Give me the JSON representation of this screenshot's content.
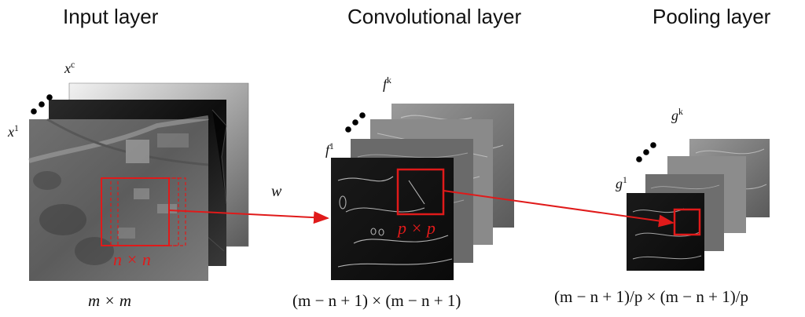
{
  "titles": {
    "input": "Input layer",
    "conv": "Convolutional layer",
    "pool": "Pooling layer"
  },
  "input_layer": {
    "label_first": "x",
    "label_first_sup": "1",
    "label_last": "x",
    "label_last_sup": "c",
    "kernel_label": "n × n",
    "size_label": "m × m"
  },
  "conv_layer": {
    "weight_label": "w",
    "label_first": "f",
    "label_first_sup": "1",
    "label_last": "f",
    "label_last_sup": "k",
    "window_label": "p × p",
    "size_label": "(m − n + 1) × (m − n + 1)"
  },
  "pool_layer": {
    "label_first": "g",
    "label_first_sup": "1",
    "label_last": "g",
    "label_last_sup": "k",
    "size_label": "(m − n + 1)/p × (m − n + 1)/p"
  },
  "colors": {
    "accent": "#e01a1a",
    "ellipsis": "#000000"
  }
}
